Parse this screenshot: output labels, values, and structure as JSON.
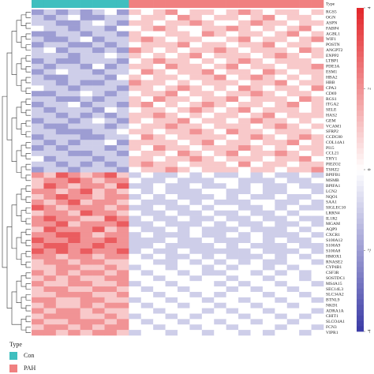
{
  "chart_data": {
    "type": "heatmap",
    "legend_title": "Type",
    "legend": [
      {
        "name": "Con",
        "color": "#3fbfbf"
      },
      {
        "name": "PAH",
        "color": "#f08080"
      }
    ],
    "column_types": [
      "Con",
      "Con",
      "Con",
      "Con",
      "Con",
      "Con",
      "Con",
      "Con",
      "PAH",
      "PAH",
      "PAH",
      "PAH",
      "PAH",
      "PAH",
      "PAH",
      "PAH",
      "PAH",
      "PAH",
      "PAH",
      "PAH",
      "PAH",
      "PAH",
      "PAH",
      "PAH"
    ],
    "rows": [
      "RGS5",
      "OGN",
      "ASPN",
      "FABP4",
      "AGBL1",
      "WIF1",
      "POSTN",
      "ANGPT2",
      "ENPP2",
      "LTBP1",
      "PDE3A",
      "ESM1",
      "HBA2",
      "HBB",
      "CPA3",
      "CD69",
      "RGS1",
      "ITGA2",
      "SELE",
      "HAS2",
      "GEM",
      "VCAM1",
      "SFRP2",
      "CCDC80",
      "COL14A1",
      "PI15",
      "CCL21",
      "THY1",
      "PIEZO2",
      "TSHZ2",
      "BPIFB1",
      "MSMB",
      "BPIFA1",
      "LCN2",
      "NQO1",
      "SAA1",
      "SIGLEC10",
      "LRRN4",
      "IL1R2",
      "MGAM",
      "AQP9",
      "CXCR1",
      "S100A12",
      "S100A9",
      "S100A8",
      "HMOX1",
      "RNASE2",
      "CYP4B1",
      "CSF3R",
      "SOSTDC1",
      "MS4A15",
      "SEC14L3",
      "SLC34A2",
      "BTNL9",
      "NKD1",
      "ADRA1A",
      "CHIT1",
      "SLCO4A1",
      "FCN3",
      "VIPR1"
    ],
    "values": [
      [
        -2,
        -1,
        -2,
        -1,
        -2,
        -1,
        0,
        -2,
        1,
        0,
        1,
        2,
        0,
        1,
        1,
        0,
        1,
        2,
        1,
        0,
        1,
        1,
        0,
        1
      ],
      [
        -1,
        -2,
        -1,
        0,
        -2,
        -2,
        -1,
        -1,
        0,
        1,
        1,
        0,
        2,
        1,
        0,
        1,
        1,
        0,
        1,
        2,
        0,
        1,
        1,
        0
      ],
      [
        -1,
        -1,
        -2,
        -2,
        -1,
        0,
        -1,
        -2,
        1,
        1,
        0,
        1,
        1,
        2,
        1,
        0,
        0,
        1,
        2,
        1,
        1,
        0,
        1,
        1
      ],
      [
        0,
        -1,
        -1,
        -2,
        -1,
        -1,
        -2,
        0,
        0,
        1,
        2,
        1,
        0,
        0,
        1,
        1,
        2,
        1,
        0,
        1,
        0,
        1,
        2,
        0
      ],
      [
        -2,
        -2,
        -1,
        -1,
        -2,
        -1,
        -1,
        -2,
        1,
        0,
        0,
        1,
        1,
        0,
        2,
        1,
        0,
        1,
        1,
        0,
        1,
        2,
        0,
        1
      ],
      [
        -1,
        -2,
        -2,
        -1,
        0,
        -2,
        -1,
        -1,
        1,
        2,
        1,
        0,
        1,
        1,
        0,
        0,
        1,
        2,
        0,
        1,
        1,
        0,
        1,
        2
      ],
      [
        -2,
        -1,
        -1,
        -2,
        -2,
        -1,
        -2,
        -1,
        0,
        1,
        1,
        1,
        2,
        0,
        1,
        1,
        0,
        1,
        1,
        2,
        0,
        1,
        1,
        0
      ],
      [
        -1,
        0,
        -2,
        -1,
        -1,
        -2,
        -1,
        -2,
        2,
        1,
        0,
        1,
        0,
        1,
        1,
        2,
        1,
        0,
        1,
        1,
        1,
        0,
        2,
        1
      ],
      [
        -1,
        -1,
        -1,
        -2,
        -1,
        -1,
        0,
        -1,
        1,
        0,
        1,
        0,
        1,
        2,
        0,
        1,
        1,
        1,
        0,
        1,
        2,
        1,
        0,
        1
      ],
      [
        -2,
        -1,
        -2,
        -2,
        -1,
        -1,
        -1,
        -2,
        0,
        1,
        2,
        1,
        1,
        0,
        1,
        0,
        1,
        2,
        1,
        0,
        1,
        1,
        1,
        0
      ],
      [
        -1,
        -2,
        -1,
        -1,
        -2,
        0,
        -2,
        -1,
        1,
        1,
        0,
        2,
        1,
        1,
        0,
        1,
        2,
        0,
        1,
        1,
        0,
        1,
        1,
        2
      ],
      [
        -2,
        -1,
        0,
        -1,
        -1,
        -2,
        -1,
        -1,
        0,
        2,
        1,
        0,
        1,
        1,
        2,
        0,
        1,
        1,
        0,
        2,
        1,
        0,
        1,
        1
      ],
      [
        -1,
        -2,
        -2,
        -1,
        -1,
        -1,
        -2,
        0,
        1,
        0,
        1,
        1,
        0,
        1,
        1,
        2,
        0,
        1,
        2,
        1,
        0,
        1,
        0,
        1
      ],
      [
        -1,
        -1,
        -2,
        -1,
        -2,
        -2,
        -1,
        -1,
        2,
        1,
        1,
        0,
        1,
        0,
        1,
        1,
        1,
        0,
        1,
        1,
        2,
        0,
        1,
        1
      ],
      [
        0,
        -1,
        -1,
        -2,
        -1,
        -1,
        -1,
        -2,
        1,
        1,
        0,
        1,
        2,
        1,
        0,
        1,
        0,
        2,
        1,
        0,
        1,
        1,
        0,
        2
      ],
      [
        -2,
        -2,
        -1,
        -1,
        0,
        -1,
        -2,
        -1,
        0,
        1,
        1,
        2,
        0,
        1,
        1,
        0,
        1,
        1,
        2,
        1,
        0,
        1,
        1,
        0
      ],
      [
        -1,
        -1,
        -2,
        -2,
        -1,
        -2,
        -1,
        -1,
        1,
        0,
        2,
        1,
        1,
        0,
        1,
        1,
        2,
        0,
        1,
        1,
        1,
        0,
        2,
        1
      ],
      [
        -2,
        -1,
        -1,
        0,
        -2,
        -1,
        -1,
        -2,
        1,
        2,
        0,
        1,
        0,
        1,
        2,
        1,
        0,
        1,
        1,
        0,
        1,
        2,
        0,
        1
      ],
      [
        -1,
        -2,
        -1,
        -1,
        -1,
        -2,
        0,
        -1,
        0,
        1,
        1,
        0,
        1,
        2,
        1,
        0,
        1,
        2,
        0,
        1,
        1,
        1,
        0,
        1
      ],
      [
        -1,
        -1,
        -2,
        -1,
        -2,
        -1,
        -2,
        -1,
        1,
        1,
        2,
        1,
        0,
        1,
        0,
        1,
        1,
        0,
        1,
        2,
        0,
        1,
        1,
        1
      ],
      [
        -2,
        -1,
        -1,
        -2,
        -1,
        0,
        -1,
        -2,
        1,
        0,
        1,
        1,
        2,
        0,
        1,
        1,
        0,
        1,
        2,
        1,
        1,
        0,
        1,
        0
      ],
      [
        -1,
        -2,
        -2,
        -1,
        -1,
        -1,
        -2,
        -1,
        0,
        1,
        1,
        2,
        1,
        1,
        0,
        1,
        1,
        1,
        0,
        1,
        2,
        1,
        0,
        1
      ],
      [
        -1,
        -1,
        -2,
        -2,
        -2,
        -1,
        -1,
        0,
        1,
        1,
        0,
        1,
        1,
        2,
        1,
        0,
        2,
        1,
        1,
        0,
        1,
        1,
        1,
        0
      ],
      [
        -2,
        -1,
        -1,
        -1,
        -2,
        -2,
        -1,
        -1,
        0,
        2,
        1,
        0,
        1,
        1,
        1,
        1,
        0,
        1,
        2,
        1,
        0,
        1,
        2,
        1
      ],
      [
        -1,
        -2,
        -1,
        -2,
        -1,
        -1,
        0,
        -2,
        1,
        1,
        1,
        1,
        0,
        1,
        2,
        0,
        1,
        1,
        0,
        1,
        1,
        2,
        0,
        1
      ],
      [
        -2,
        -1,
        -2,
        -1,
        -1,
        -1,
        -2,
        -1,
        1,
        0,
        2,
        1,
        1,
        0,
        1,
        1,
        1,
        2,
        1,
        0,
        1,
        0,
        1,
        1
      ],
      [
        -1,
        -1,
        -1,
        -2,
        -2,
        -1,
        -1,
        -2,
        0,
        1,
        1,
        0,
        2,
        1,
        0,
        1,
        2,
        0,
        1,
        1,
        2,
        1,
        0,
        1
      ],
      [
        0,
        -2,
        -1,
        -1,
        -1,
        -2,
        -1,
        -1,
        1,
        1,
        0,
        1,
        1,
        2,
        1,
        0,
        1,
        1,
        1,
        0,
        1,
        1,
        2,
        0
      ],
      [
        -1,
        -1,
        -2,
        -1,
        -2,
        -1,
        -2,
        -1,
        1,
        2,
        1,
        1,
        0,
        1,
        1,
        1,
        0,
        2,
        0,
        1,
        1,
        0,
        1,
        1
      ],
      [
        -2,
        -1,
        -1,
        -2,
        -1,
        -1,
        -1,
        -2,
        0,
        1,
        1,
        2,
        1,
        0,
        1,
        1,
        1,
        0,
        1,
        1,
        0,
        1,
        1,
        2
      ],
      [
        2,
        1,
        3,
        2,
        1,
        2,
        3,
        1,
        -1,
        0,
        -1,
        -1,
        0,
        -1,
        0,
        -1,
        -1,
        0,
        -1,
        0,
        -1,
        -1,
        0,
        -1
      ],
      [
        1,
        2,
        2,
        3,
        2,
        1,
        2,
        2,
        0,
        -1,
        -1,
        0,
        -1,
        -1,
        -1,
        0,
        0,
        -1,
        -1,
        -1,
        0,
        -1,
        -1,
        0
      ],
      [
        1,
        3,
        2,
        1,
        2,
        2,
        1,
        3,
        -1,
        -1,
        0,
        -1,
        -1,
        0,
        -1,
        -1,
        0,
        -1,
        0,
        -1,
        -1,
        0,
        -1,
        -1
      ],
      [
        2,
        2,
        1,
        2,
        3,
        1,
        2,
        1,
        0,
        -1,
        0,
        -1,
        -1,
        -1,
        0,
        0,
        -1,
        -1,
        0,
        -1,
        -1,
        0,
        0,
        -1
      ],
      [
        1,
        2,
        3,
        2,
        2,
        1,
        2,
        2,
        -1,
        0,
        -1,
        0,
        -1,
        -1,
        -1,
        0,
        -1,
        0,
        -1,
        -1,
        0,
        -1,
        -1,
        0
      ],
      [
        2,
        1,
        2,
        3,
        1,
        2,
        2,
        1,
        0,
        -1,
        -1,
        -1,
        0,
        -1,
        0,
        -1,
        -1,
        -1,
        0,
        0,
        -1,
        -1,
        0,
        -1
      ],
      [
        3,
        2,
        1,
        2,
        2,
        2,
        1,
        2,
        -1,
        -1,
        0,
        -1,
        -1,
        0,
        -1,
        0,
        0,
        -1,
        -1,
        0,
        -1,
        0,
        -1,
        -1
      ],
      [
        1,
        2,
        2,
        1,
        3,
        2,
        2,
        1,
        0,
        -1,
        -1,
        0,
        -1,
        -1,
        0,
        -1,
        -1,
        0,
        -1,
        -1,
        0,
        -1,
        0,
        0
      ],
      [
        2,
        3,
        2,
        2,
        1,
        1,
        3,
        2,
        -1,
        0,
        -1,
        -1,
        0,
        -1,
        -1,
        0,
        -1,
        -1,
        0,
        -1,
        -1,
        0,
        -1,
        -1
      ],
      [
        2,
        2,
        3,
        1,
        2,
        2,
        2,
        3,
        -1,
        -1,
        0,
        -1,
        -1,
        -1,
        0,
        -1,
        0,
        -1,
        -1,
        0,
        -1,
        -1,
        0,
        -1
      ],
      [
        1,
        3,
        2,
        2,
        2,
        3,
        1,
        2,
        0,
        -1,
        -1,
        0,
        -1,
        0,
        -1,
        -1,
        -1,
        0,
        -1,
        -1,
        -1,
        0,
        -1,
        0
      ],
      [
        2,
        2,
        3,
        3,
        2,
        1,
        2,
        2,
        -1,
        0,
        -1,
        -1,
        -1,
        0,
        -1,
        -1,
        0,
        -1,
        0,
        -1,
        -1,
        -1,
        0,
        -1
      ],
      [
        3,
        2,
        2,
        3,
        2,
        2,
        3,
        2,
        -1,
        -1,
        -1,
        0,
        -1,
        -1,
        0,
        -1,
        -1,
        -1,
        0,
        -1,
        0,
        -1,
        -1,
        0
      ],
      [
        2,
        3,
        3,
        2,
        2,
        3,
        2,
        2,
        -1,
        -1,
        0,
        -1,
        -1,
        -1,
        -1,
        0,
        -1,
        0,
        -1,
        -1,
        -1,
        0,
        -1,
        -1
      ],
      [
        3,
        2,
        3,
        2,
        3,
        2,
        2,
        3,
        -1,
        0,
        -1,
        -1,
        0,
        -1,
        -1,
        -1,
        -1,
        -1,
        0,
        -1,
        -1,
        -1,
        0,
        -1
      ],
      [
        2,
        2,
        1,
        2,
        2,
        1,
        2,
        2,
        0,
        -1,
        0,
        -1,
        -1,
        0,
        -1,
        0,
        -1,
        -1,
        -1,
        0,
        -1,
        0,
        -1,
        0
      ],
      [
        1,
        2,
        2,
        1,
        2,
        2,
        1,
        1,
        0,
        0,
        -1,
        -1,
        0,
        -1,
        0,
        -1,
        0,
        -1,
        0,
        -1,
        -1,
        0,
        0,
        -1
      ],
      [
        1,
        1,
        2,
        2,
        1,
        1,
        2,
        1,
        -1,
        0,
        0,
        -1,
        0,
        0,
        -1,
        0,
        -1,
        0,
        0,
        -1,
        0,
        -1,
        0,
        0
      ],
      [
        2,
        1,
        2,
        1,
        2,
        2,
        1,
        2,
        0,
        -1,
        0,
        0,
        -1,
        0,
        -1,
        -1,
        0,
        0,
        -1,
        0,
        -1,
        0,
        -1,
        0
      ],
      [
        1,
        2,
        1,
        2,
        1,
        1,
        2,
        2,
        0,
        0,
        -1,
        0,
        0,
        -1,
        0,
        0,
        -1,
        0,
        0,
        -1,
        0,
        0,
        -1,
        0
      ],
      [
        2,
        1,
        1,
        2,
        2,
        1,
        1,
        2,
        -1,
        0,
        0,
        -1,
        0,
        0,
        0,
        -1,
        0,
        -1,
        0,
        0,
        -1,
        0,
        0,
        -1
      ],
      [
        1,
        2,
        2,
        1,
        1,
        2,
        2,
        1,
        0,
        -1,
        0,
        0,
        -1,
        0,
        0,
        0,
        -1,
        0,
        -1,
        0,
        0,
        -1,
        0,
        0
      ],
      [
        1,
        1,
        2,
        2,
        2,
        1,
        1,
        2,
        0,
        0,
        -1,
        0,
        0,
        -1,
        0,
        -1,
        0,
        0,
        0,
        -1,
        0,
        0,
        -1,
        0
      ],
      [
        2,
        2,
        1,
        1,
        2,
        2,
        1,
        1,
        -1,
        0,
        0,
        -1,
        0,
        0,
        -1,
        0,
        0,
        -1,
        0,
        0,
        -1,
        0,
        0,
        -1
      ],
      [
        1,
        2,
        1,
        1,
        2,
        1,
        2,
        2,
        0,
        -1,
        0,
        0,
        -1,
        0,
        0,
        -1,
        0,
        0,
        -1,
        0,
        0,
        -1,
        0,
        0
      ],
      [
        2,
        1,
        2,
        2,
        1,
        2,
        1,
        1,
        0,
        0,
        -1,
        0,
        0,
        0,
        -1,
        0,
        -1,
        0,
        0,
        -1,
        0,
        0,
        0,
        -1
      ],
      [
        1,
        2,
        2,
        2,
        1,
        1,
        2,
        1,
        -1,
        0,
        0,
        -1,
        0,
        -1,
        0,
        0,
        0,
        -1,
        0,
        0,
        -1,
        0,
        -1,
        0
      ],
      [
        2,
        1,
        1,
        2,
        2,
        2,
        1,
        2,
        0,
        -1,
        0,
        0,
        -1,
        0,
        0,
        -1,
        0,
        0,
        -1,
        0,
        0,
        -1,
        0,
        0
      ],
      [
        1,
        2,
        2,
        1,
        2,
        1,
        2,
        2,
        0,
        0,
        -1,
        0,
        0,
        -1,
        0,
        0,
        -1,
        0,
        0,
        0,
        -1,
        0,
        0,
        -1
      ],
      [
        2,
        2,
        1,
        2,
        1,
        2,
        2,
        1,
        -1,
        0,
        0,
        -1,
        0,
        0,
        -1,
        0,
        0,
        -1,
        0,
        -1,
        0,
        0,
        -1,
        0
      ]
    ],
    "zlim": [
      -4,
      4
    ],
    "zticks": [
      -4,
      -2,
      0,
      2,
      4
    ],
    "colors": {
      "low": "#3a3aa6",
      "mid": "#ffffff",
      "high": "#e3262a"
    }
  }
}
